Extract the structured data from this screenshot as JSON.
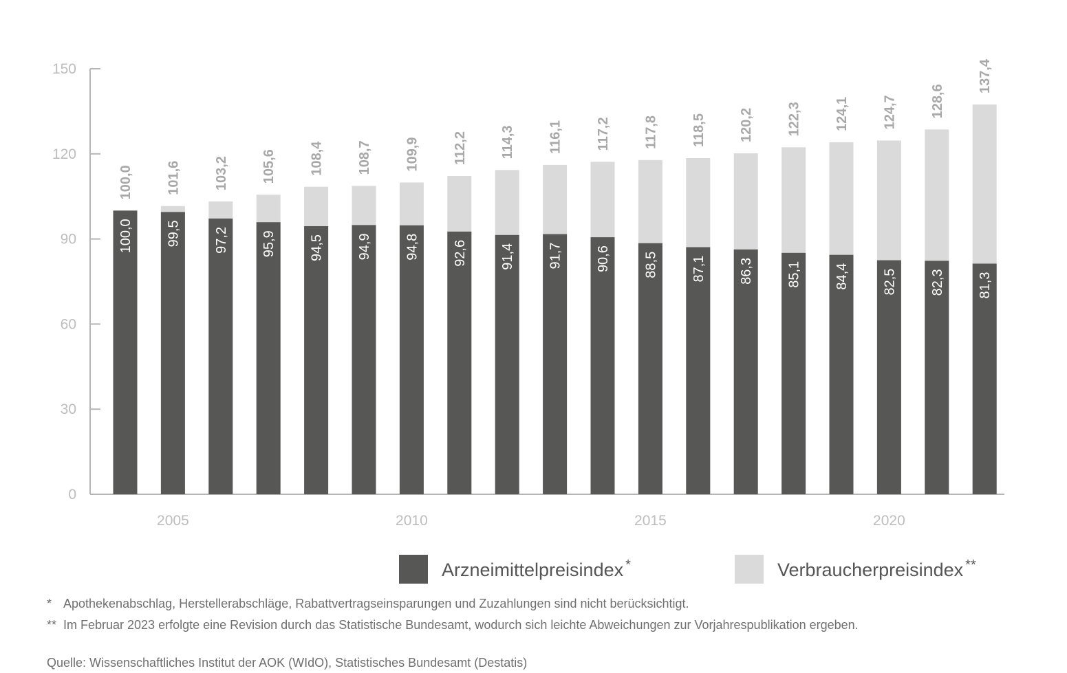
{
  "chart_data": {
    "type": "bar",
    "stacking": "overlay",
    "years": [
      2004,
      2005,
      2006,
      2007,
      2008,
      2009,
      2010,
      2011,
      2012,
      2013,
      2014,
      2015,
      2016,
      2017,
      2018,
      2019,
      2020,
      2021,
      2022
    ],
    "x_tick_labels": [
      "2005",
      "2010",
      "2015",
      "2020"
    ],
    "x_tick_years": [
      2005,
      2010,
      2015,
      2020
    ],
    "y_ticks": [
      0,
      30,
      60,
      90,
      120,
      150
    ],
    "y_tick_labels": [
      "0",
      "30",
      "60",
      "90",
      "120",
      "150"
    ],
    "ylim": [
      0,
      150
    ],
    "series": [
      {
        "name": "Arzneimittelpreisindex",
        "marker": "*",
        "color": "#575756",
        "values": [
          100.0,
          99.5,
          97.2,
          95.9,
          94.5,
          94.9,
          94.8,
          92.6,
          91.4,
          91.7,
          90.6,
          88.5,
          87.1,
          86.3,
          85.1,
          84.4,
          82.5,
          82.3,
          81.3
        ],
        "labels": [
          "100,0",
          "99,5",
          "97,2",
          "95,9",
          "94,5",
          "94,9",
          "94,8",
          "92,6",
          "91,4",
          "91,7",
          "90,6",
          "88,5",
          "87,1",
          "86,3",
          "85,1",
          "84,4",
          "82,5",
          "82,3",
          "81,3"
        ]
      },
      {
        "name": "Verbraucherpreisindex",
        "marker": "**",
        "color": "#dadada",
        "values": [
          100.0,
          101.6,
          103.2,
          105.6,
          108.4,
          108.7,
          109.9,
          112.2,
          114.3,
          116.1,
          117.2,
          117.8,
          118.5,
          120.2,
          122.3,
          124.1,
          124.7,
          128.6,
          137.4
        ],
        "labels": [
          "100,0",
          "101,6",
          "103,2",
          "105,6",
          "108,4",
          "108,7",
          "109,9",
          "112,2",
          "114,3",
          "116,1",
          "117,2",
          "117,8",
          "118,5",
          "120,2",
          "122,3",
          "124,1",
          "124,7",
          "128,6",
          "137,4"
        ]
      }
    ],
    "grid": false,
    "legend_position": "bottom-right"
  },
  "notes": {
    "note1_mark": "*",
    "note1_text": "Apothekenabschlag, Herstellerabschläge, Rabattvertragseinsparungen und Zuzahlungen sind nicht berücksichtigt.",
    "note2_mark": "**",
    "note2_text": "Im Februar 2023 erfolgte eine Revision durch das Statistische Bundesamt, wodurch sich leichte Abweichungen zur Vorjahrespublikation ergeben.",
    "source": "Quelle: Wissenschaftliches Institut der AOK (WIdO), Statistisches Bundesamt (Destatis)"
  }
}
